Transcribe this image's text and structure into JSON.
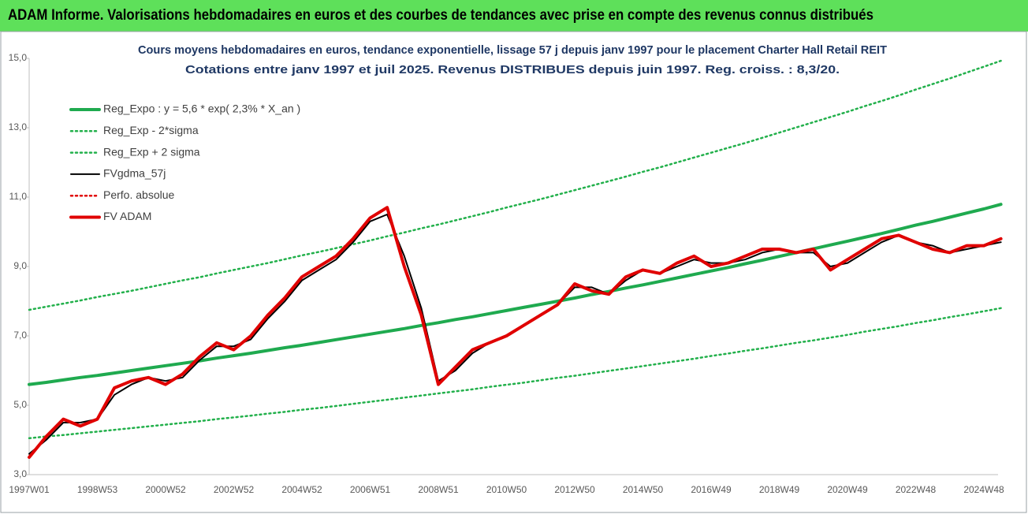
{
  "chart_data": {
    "type": "line",
    "title": "ADAM Informe. Valorisations hebdomadaires en euros et des courbes de tendances avec prise en compte des revenus connus distribués",
    "subtitle": [
      "Cours moyens hebdomadaires en euros, tendance exponentielle, lissage 57 j depuis janv 1997 pour le placement Charter Hall Retail REIT",
      "Cotations entre janv 1997 et juil 2025. Revenus DISTRIBUES depuis juin 1997. Reg. croiss. : 8,3/20."
    ],
    "categories": [
      "1997W01",
      null,
      null,
      null,
      "1998W53",
      null,
      null,
      null,
      "2000W52",
      null,
      null,
      null,
      "2002W52",
      null,
      null,
      null,
      "2004W52",
      null,
      null,
      null,
      "2006W51",
      null,
      null,
      null,
      "2008W51",
      null,
      null,
      null,
      "2010W50",
      null,
      null,
      null,
      "2012W50",
      null,
      null,
      null,
      "2014W50",
      null,
      null,
      null,
      "2016W49",
      null,
      null,
      null,
      "2018W49",
      null,
      null,
      null,
      "2020W49",
      null,
      null,
      null,
      "2022W48",
      null,
      null,
      null,
      "2024W48",
      null
    ],
    "ylim": [
      3,
      15
    ],
    "yticks": [
      {
        "value": 3,
        "label": "3,0"
      },
      {
        "value": 5,
        "label": "5,0"
      },
      {
        "value": 7,
        "label": "7,0"
      },
      {
        "value": 9,
        "label": "9,0"
      },
      {
        "value": 11,
        "label": "11,0"
      },
      {
        "value": 13,
        "label": "13,0"
      },
      {
        "value": 15,
        "label": "15,0"
      }
    ],
    "grid": false,
    "legend": "upper left",
    "series": [
      {
        "name": "Reg_Expo : y = 5,6 * exp( 2,3% *  X_an )",
        "color": "#1faa4f",
        "line_style": "solid",
        "values": [
          5.6,
          5.66,
          5.73,
          5.8,
          5.86,
          5.93,
          6.0,
          6.07,
          6.14,
          6.21,
          6.28,
          6.36,
          6.43,
          6.5,
          6.58,
          6.66,
          6.73,
          6.81,
          6.89,
          6.97,
          7.05,
          7.13,
          7.21,
          7.3,
          7.38,
          7.47,
          7.55,
          7.64,
          7.73,
          7.82,
          7.91,
          8.0,
          8.09,
          8.19,
          8.28,
          8.38,
          8.47,
          8.57,
          8.67,
          8.77,
          8.87,
          8.97,
          9.08,
          9.18,
          9.29,
          9.4,
          9.51,
          9.62,
          9.73,
          9.84,
          9.95,
          10.07,
          10.19,
          10.3,
          10.42,
          10.54,
          10.66,
          10.79
        ]
      },
      {
        "name": "Reg_Exp - 2*sigma",
        "color": "#22b04b",
        "line_style": "dotted",
        "values": [
          4.05,
          4.1,
          4.14,
          4.19,
          4.24,
          4.29,
          4.34,
          4.39,
          4.44,
          4.49,
          4.54,
          4.6,
          4.65,
          4.7,
          4.76,
          4.81,
          4.87,
          4.92,
          4.98,
          5.04,
          5.1,
          5.16,
          5.22,
          5.28,
          5.34,
          5.4,
          5.46,
          5.53,
          5.59,
          5.65,
          5.72,
          5.79,
          5.85,
          5.92,
          5.99,
          6.06,
          6.13,
          6.2,
          6.27,
          6.34,
          6.42,
          6.49,
          6.57,
          6.64,
          6.72,
          6.8,
          6.87,
          6.95,
          7.03,
          7.12,
          7.2,
          7.28,
          7.37,
          7.45,
          7.54,
          7.62,
          7.71,
          7.8
        ]
      },
      {
        "name": "Reg_Exp + 2 sigma",
        "color": "#22b04b",
        "line_style": "dotted",
        "values": [
          7.75,
          7.84,
          7.93,
          8.02,
          8.12,
          8.21,
          8.3,
          8.4,
          8.5,
          8.6,
          8.69,
          8.8,
          8.9,
          9.0,
          9.1,
          9.21,
          9.32,
          9.42,
          9.53,
          9.64,
          9.75,
          9.87,
          9.98,
          10.1,
          10.21,
          10.33,
          10.45,
          10.57,
          10.7,
          10.82,
          10.94,
          11.07,
          11.2,
          11.33,
          11.46,
          11.59,
          11.73,
          11.86,
          12.0,
          12.14,
          12.28,
          12.42,
          12.56,
          12.71,
          12.86,
          13.01,
          13.16,
          13.31,
          13.46,
          13.62,
          13.77,
          13.93,
          14.1,
          14.26,
          14.42,
          14.59,
          14.76,
          14.93
        ]
      },
      {
        "name": "FVgdma_57j",
        "color": "#000000",
        "line_style": "solid",
        "values": [
          3.6,
          4.0,
          4.5,
          4.5,
          4.6,
          5.3,
          5.6,
          5.8,
          5.7,
          5.8,
          6.3,
          6.7,
          6.7,
          6.9,
          7.5,
          8.0,
          8.6,
          8.9,
          9.2,
          9.7,
          10.3,
          10.5,
          9.3,
          7.8,
          5.7,
          6.0,
          6.5,
          6.8,
          7.0,
          7.3,
          7.6,
          7.9,
          8.4,
          8.4,
          8.2,
          8.6,
          8.9,
          8.8,
          9.0,
          9.2,
          9.1,
          9.1,
          9.2,
          9.4,
          9.5,
          9.4,
          9.4,
          9.0,
          9.1,
          9.4,
          9.7,
          9.9,
          9.7,
          9.6,
          9.4,
          9.5,
          9.6,
          9.7
        ]
      },
      {
        "name": "Perfo. absolue",
        "color": "#e00000",
        "line_style": "dotted",
        "values": [
          3.5,
          4.1,
          4.6,
          4.4,
          4.6,
          5.5,
          5.7,
          5.8,
          5.6,
          5.9,
          6.4,
          6.8,
          6.6,
          7.0,
          7.6,
          8.1,
          8.7,
          9.0,
          9.3,
          9.8,
          10.4,
          10.7,
          9.0,
          7.6,
          5.6,
          6.1,
          6.6,
          6.8,
          7.0,
          7.3,
          7.6,
          7.9,
          8.5,
          8.3,
          8.2,
          8.7,
          8.9,
          8.8,
          9.1,
          9.3,
          9.0,
          9.1,
          9.3,
          9.5,
          9.5,
          9.4,
          9.5,
          8.9,
          9.2,
          9.5,
          9.8,
          9.9,
          9.7,
          9.5,
          9.4,
          9.6,
          9.6,
          9.8
        ]
      },
      {
        "name": "FV ADAM",
        "color": "#e00000",
        "line_style": "solid",
        "values": [
          3.5,
          4.1,
          4.6,
          4.4,
          4.6,
          5.5,
          5.7,
          5.8,
          5.6,
          5.9,
          6.4,
          6.8,
          6.6,
          7.0,
          7.6,
          8.1,
          8.7,
          9.0,
          9.3,
          9.8,
          10.4,
          10.7,
          9.0,
          7.6,
          5.6,
          6.1,
          6.6,
          6.8,
          7.0,
          7.3,
          7.6,
          7.9,
          8.5,
          8.3,
          8.2,
          8.7,
          8.9,
          8.8,
          9.1,
          9.3,
          9.0,
          9.1,
          9.3,
          9.5,
          9.5,
          9.4,
          9.5,
          8.9,
          9.2,
          9.5,
          9.8,
          9.9,
          9.7,
          9.5,
          9.4,
          9.6,
          9.6,
          9.8
        ]
      }
    ]
  }
}
